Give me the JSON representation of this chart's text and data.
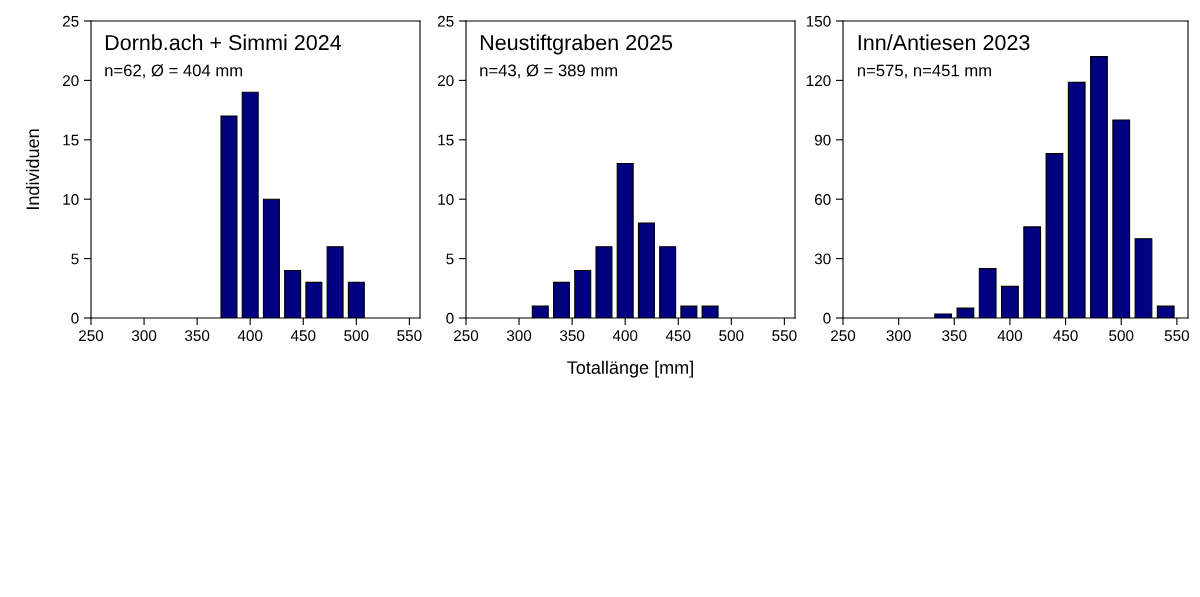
{
  "chart_data": [
    {
      "type": "bar",
      "title": "Dornb.ach + Simmi 2024",
      "subtitle": "n=62, Ø = 404 mm",
      "ylabel": "Individuen",
      "x": [
        380,
        400,
        420,
        440,
        460,
        480,
        500
      ],
      "values": [
        17,
        19,
        10,
        4,
        3,
        6,
        3
      ],
      "color": "#000080",
      "xlim": [
        250,
        560
      ],
      "xticks": [
        250,
        300,
        350,
        400,
        450,
        500,
        550
      ],
      "ylim": [
        0,
        25
      ],
      "yticks": [
        0,
        5,
        10,
        15,
        20,
        25
      ],
      "grid": false
    },
    {
      "type": "bar",
      "title": "Neustiftgraben 2025",
      "subtitle": "n=43, Ø = 389 mm",
      "xlabel": "Totallänge [mm]",
      "x": [
        320,
        340,
        360,
        380,
        400,
        420,
        440,
        460,
        480
      ],
      "values": [
        1,
        3,
        4,
        6,
        13,
        8,
        6,
        1,
        1
      ],
      "color": "#000080",
      "xlim": [
        250,
        560
      ],
      "xticks": [
        250,
        300,
        350,
        400,
        450,
        500,
        550
      ],
      "ylim": [
        0,
        25
      ],
      "yticks": [
        0,
        5,
        10,
        15,
        20,
        25
      ],
      "grid": false
    },
    {
      "type": "bar",
      "title": "Inn/Antiesen 2023",
      "subtitle": "n=575, n=451 mm",
      "x": [
        340,
        360,
        380,
        400,
        420,
        440,
        460,
        480,
        500,
        520,
        540
      ],
      "values": [
        2,
        5,
        25,
        16,
        46,
        83,
        119,
        132,
        100,
        40,
        6
      ],
      "color": "#000080",
      "xlim": [
        250,
        560
      ],
      "xticks": [
        250,
        300,
        350,
        400,
        450,
        500,
        550
      ],
      "ylim": [
        0,
        150
      ],
      "yticks": [
        0,
        30,
        60,
        90,
        120,
        150
      ],
      "grid": false
    }
  ]
}
